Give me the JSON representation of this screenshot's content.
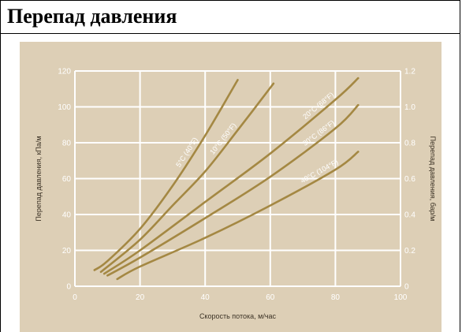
{
  "page": {
    "title": "Перепад давления"
  },
  "colors": {
    "background": "#ddcfb6",
    "grid": "#ffffff",
    "curve": "#a48843"
  },
  "chart_data": {
    "type": "line",
    "title": "",
    "xlabel": "Скорость потока, м/час",
    "ylabel": "Перепад давления, кПа/м",
    "y2label": "Перепад давления, бар/м",
    "xlim": [
      0,
      100
    ],
    "ylim": [
      0,
      120
    ],
    "y2lim": [
      0,
      1.2
    ],
    "x_ticks": [
      "0",
      "20",
      "40",
      "60",
      "80",
      "100"
    ],
    "y_ticks": [
      "0",
      "20",
      "40",
      "60",
      "80",
      "100",
      "120"
    ],
    "y2_ticks": [
      "0",
      "0.2",
      "0.4",
      "0.6",
      "0.8",
      "1.0",
      "1.2"
    ],
    "grid": true,
    "series": [
      {
        "name": "5°C (40°F)",
        "x": [
          6,
          10,
          20,
          30,
          40,
          50
        ],
        "y": [
          9,
          14,
          32,
          56,
          84,
          115
        ]
      },
      {
        "name": "10°C (50°F)",
        "x": [
          8,
          20,
          30,
          40,
          50,
          61
        ],
        "y": [
          8,
          26,
          45,
          64,
          87,
          113
        ]
      },
      {
        "name": "20°C (68°F)",
        "x": [
          9,
          20,
          40,
          60,
          80,
          87
        ],
        "y": [
          7,
          20,
          47,
          74,
          104,
          116
        ]
      },
      {
        "name": "30°C (86°F)",
        "x": [
          10,
          20,
          40,
          60,
          80,
          87
        ],
        "y": [
          6,
          16,
          38,
          61,
          88,
          101
        ]
      },
      {
        "name": "40°C (104°F)",
        "x": [
          13,
          20,
          40,
          60,
          80,
          87
        ],
        "y": [
          4,
          11,
          27,
          45,
          65,
          75
        ]
      }
    ]
  }
}
